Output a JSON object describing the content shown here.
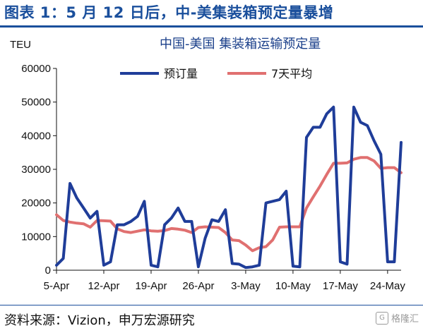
{
  "header": {
    "title": "图表 1：5 月 12 日后，中-美集装箱预定量暴增"
  },
  "footer": {
    "source": "资料来源：Vizion，申万宏源研究",
    "watermark": "格隆汇"
  },
  "colors": {
    "accent": "#1a4f9c",
    "series_booking": "#1f3d99",
    "series_ma7": "#e07070"
  },
  "chart_data": {
    "type": "line",
    "title": "中国-美国 集装箱运输预定量",
    "ylabel": "TEU",
    "xlabel": "",
    "ylim": [
      0,
      60000
    ],
    "yticks": [
      "0",
      "10000",
      "20000",
      "30000",
      "40000",
      "50000",
      "60000"
    ],
    "xticks": [
      "5-Apr",
      "12-Apr",
      "19-Apr",
      "26-Apr",
      "3-May",
      "10-May",
      "17-May",
      "24-May"
    ],
    "grid": false,
    "legend_position": "top",
    "series": [
      {
        "name": "预订量",
        "values": [
          1500,
          3500,
          25800,
          21500,
          18500,
          15500,
          17500,
          1500,
          2500,
          13500,
          13500,
          14500,
          16000,
          20500,
          1500,
          1000,
          13500,
          15500,
          18500,
          14500,
          14500,
          1000,
          9500,
          15000,
          14500,
          18000,
          2000,
          1800,
          800,
          1000,
          1500,
          20000,
          20500,
          21000,
          23500,
          1200,
          1000,
          39500,
          42500,
          42500,
          46500,
          48500,
          2500,
          1800,
          48500,
          44000,
          43000,
          38500,
          34500,
          2500,
          2500,
          38000
        ]
      },
      {
        "name": "7天平均",
        "values": [
          16500,
          14800,
          14300,
          14000,
          13800,
          12800,
          14800,
          14700,
          14600,
          12300,
          11500,
          11200,
          11600,
          12000,
          11700,
          11600,
          11800,
          12400,
          12200,
          11900,
          11200,
          12700,
          12900,
          12800,
          12700,
          11200,
          9000,
          8800,
          7500,
          5800,
          6700,
          7000,
          9000,
          12800,
          12900,
          12900,
          12900,
          18500,
          21800,
          25000,
          28500,
          31800,
          31800,
          31900,
          33000,
          33500,
          33500,
          32500,
          30300,
          30500,
          30500,
          29000
        ]
      }
    ]
  }
}
